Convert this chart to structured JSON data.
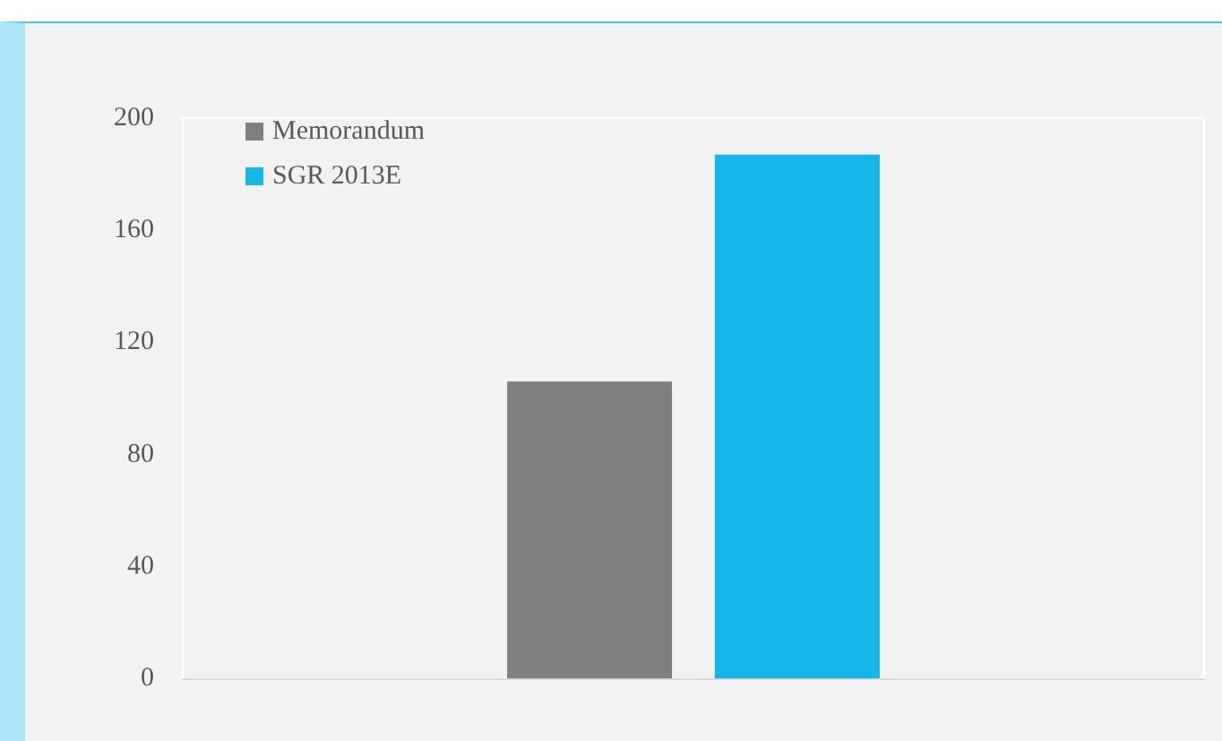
{
  "chart_data": {
    "type": "bar",
    "categories": [
      null
    ],
    "series": [
      {
        "name": "Memorandum",
        "color": "#7f7f7f",
        "values": [
          106
        ]
      },
      {
        "name": "SGR 2013E",
        "color": "#15b4e9",
        "values": [
          187
        ]
      }
    ],
    "ylim": [
      0,
      200
    ],
    "yticks": [
      0,
      40,
      80,
      120,
      160,
      200
    ],
    "grid": false,
    "legend": "top left"
  }
}
